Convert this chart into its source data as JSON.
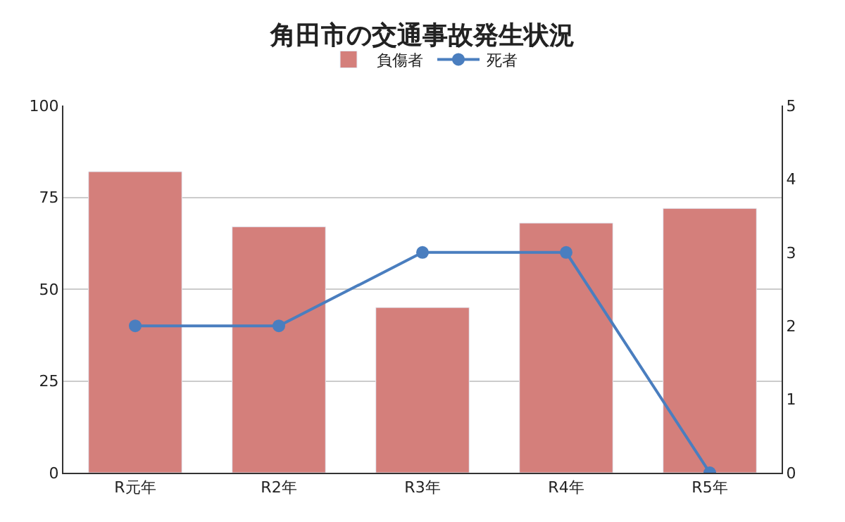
{
  "chart_data": {
    "type": "bar",
    "title": "角田市の交通事故発生状況",
    "categories": [
      "R元年",
      "R2年",
      "R3年",
      "R4年",
      "R5年"
    ],
    "series": [
      {
        "name": "負傷者",
        "color": "#d47f7b",
        "values": [
          82,
          67,
          45,
          68,
          72
        ]
      },
      {
        "name": "死者",
        "type": "line",
        "axis": "y2",
        "color": "#4a7ebf",
        "values": [
          2,
          2,
          3,
          3,
          0
        ]
      }
    ],
    "ylim": [
      0,
      100
    ],
    "yticks": [
      0,
      25,
      50,
      75,
      100
    ],
    "y2lim": [
      0,
      5
    ],
    "y2ticks": [
      0,
      1,
      2,
      3,
      4,
      5
    ],
    "grid": "y",
    "legend": "top",
    "marker": "circle",
    "line_style": "solid"
  }
}
